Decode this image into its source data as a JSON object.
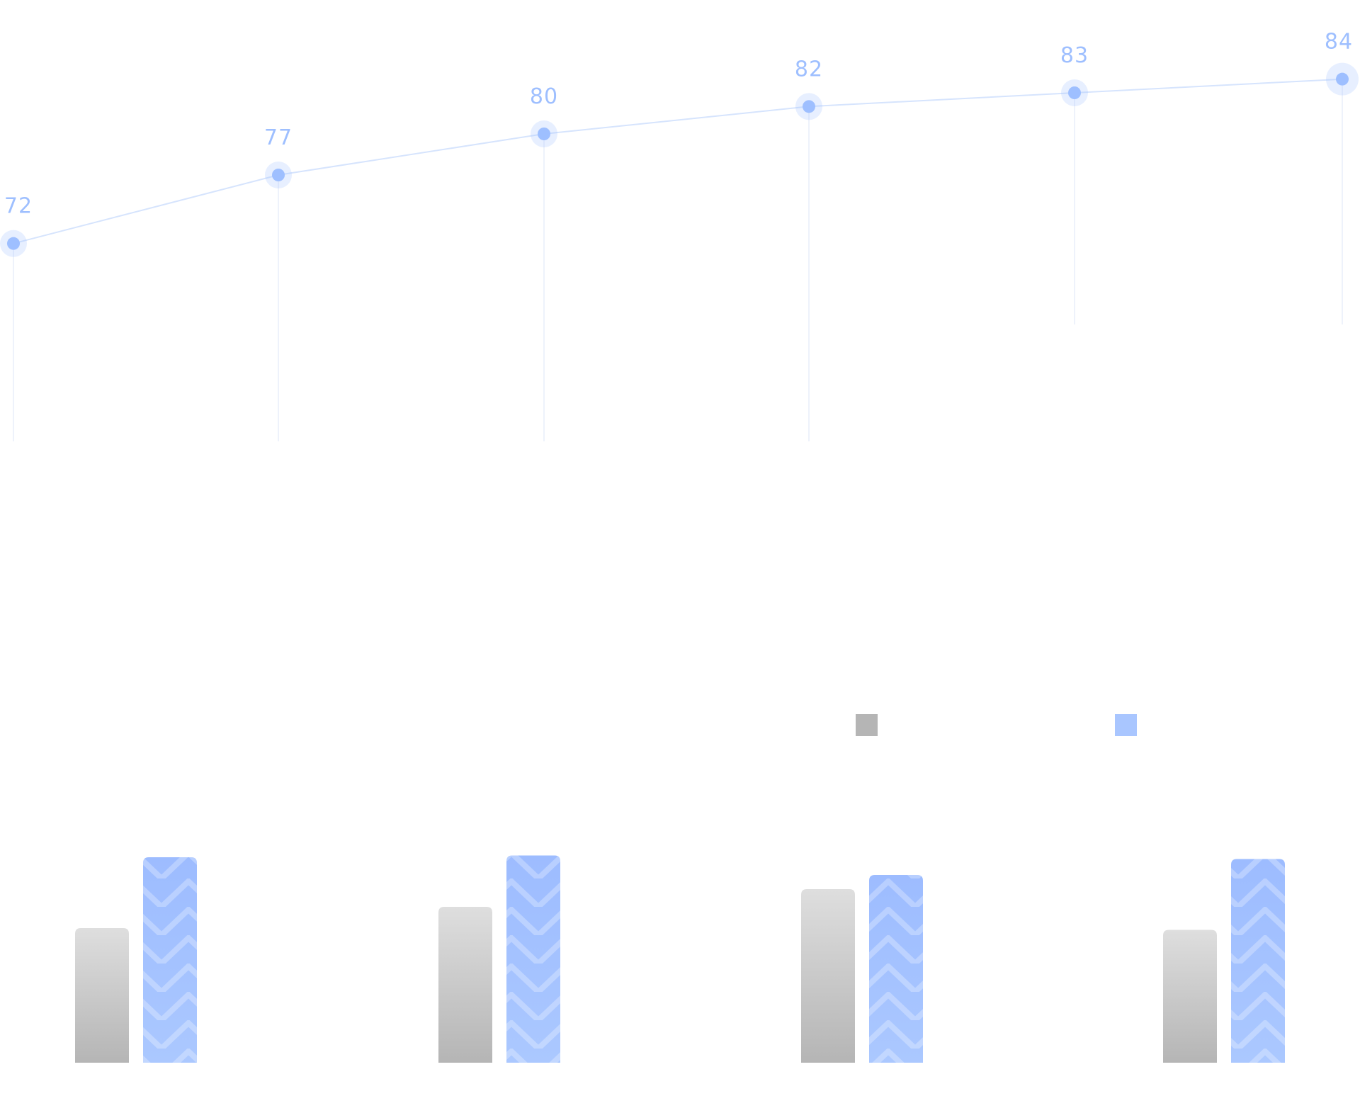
{
  "chart_data": [
    {
      "type": "line",
      "values": [
        72,
        77,
        80,
        82,
        83,
        84
      ],
      "data_labels": [
        "72",
        "77",
        "80",
        "82",
        "83",
        "84"
      ],
      "ylim": [
        62,
        86
      ],
      "grid": false,
      "color": "#9ebfff",
      "line_color": "#d6e4fd",
      "drop_line_color": "#eef2fb"
    },
    {
      "type": "bar",
      "categories": [
        "",
        "",
        "",
        ""
      ],
      "series": [
        {
          "values": [
            38,
            44,
            49,
            37.5
          ],
          "color": "#b5b5b5",
          "color_top": "#dedede"
        },
        {
          "values": [
            58,
            58.5,
            53,
            57.5
          ],
          "color": "#a9c6ff",
          "color_top": "#9dbcff"
        }
      ],
      "ylim": [
        0,
        60
      ],
      "legend_placement": "top-right",
      "grid": false
    }
  ]
}
